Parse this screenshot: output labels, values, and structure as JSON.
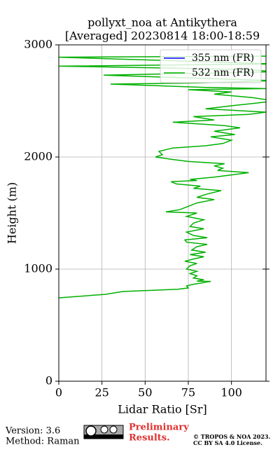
{
  "chart_data": {
    "type": "line",
    "title": [
      "pollyxt_noa at Antikythera",
      "[Averaged] 20230814 18:00-18:59"
    ],
    "xlabel": "Lidar Ratio [Sr]",
    "ylabel": "Height (m)",
    "xlim": [
      0,
      120
    ],
    "ylim": [
      0,
      3000
    ],
    "xticks": [
      0,
      25,
      50,
      75,
      100
    ],
    "yticks": [
      0,
      1000,
      2000,
      3000
    ],
    "grid": true,
    "legend": "upper right",
    "series": [
      {
        "name": "355 nm (FR)",
        "color": "#0000ff",
        "x": [],
        "y": []
      },
      {
        "name": "532 nm (FR)",
        "color": "#00b000",
        "x": [
          0,
          27,
          37,
          69,
          75,
          74,
          77,
          82,
          88,
          80,
          84,
          78,
          80,
          76,
          80,
          74,
          76,
          80,
          73,
          78,
          84,
          76,
          85,
          77,
          80,
          86,
          74,
          73,
          86,
          78,
          74,
          84,
          76,
          78,
          84,
          74,
          80,
          62,
          70,
          75,
          80,
          90,
          80,
          86,
          94,
          78,
          82,
          68,
          65,
          80,
          76,
          90,
          100,
          110,
          92,
          95,
          90,
          96,
          75,
          65,
          56,
          60,
          58,
          66,
          85,
          95,
          100,
          88,
          102,
          90,
          105,
          96,
          66,
          90,
          78,
          110,
          120,
          85,
          102,
          114,
          125,
          112,
          90,
          100,
          75,
          121,
          85,
          30,
          80,
          125,
          26,
          125,
          110,
          0,
          125,
          0,
          125
        ],
        "y": [
          744,
          775,
          800,
          820,
          832,
          850,
          862,
          875,
          890,
          893,
          905,
          920,
          940,
          960,
          980,
          1000,
          1030,
          1050,
          1070,
          1090,
          1110,
          1130,
          1150,
          1170,
          1200,
          1220,
          1240,
          1260,
          1280,
          1300,
          1330,
          1360,
          1380,
          1410,
          1440,
          1470,
          1500,
          1510,
          1530,
          1560,
          1590,
          1620,
          1640,
          1670,
          1700,
          1720,
          1740,
          1760,
          1780,
          1790,
          1800,
          1820,
          1840,
          1860,
          1880,
          1900,
          1920,
          1940,
          1960,
          1980,
          2000,
          2020,
          2050,
          2080,
          2100,
          2120,
          2150,
          2180,
          2200,
          2230,
          2260,
          2280,
          2310,
          2330,
          2360,
          2380,
          2400,
          2430,
          2460,
          2480,
          2500,
          2530,
          2560,
          2580,
          2600,
          2610,
          2620,
          2650,
          2660,
          2680,
          2730,
          2760,
          2780,
          2810,
          2830,
          2890,
          2900
        ]
      }
    ]
  },
  "footer": {
    "version": "Version: 3.6",
    "method": "Method: Raman",
    "preliminary": [
      "Preliminary",
      "Results."
    ],
    "license": [
      "© TROPOS & NOA 2023.",
      "CC BY SA 4.0 License."
    ]
  }
}
